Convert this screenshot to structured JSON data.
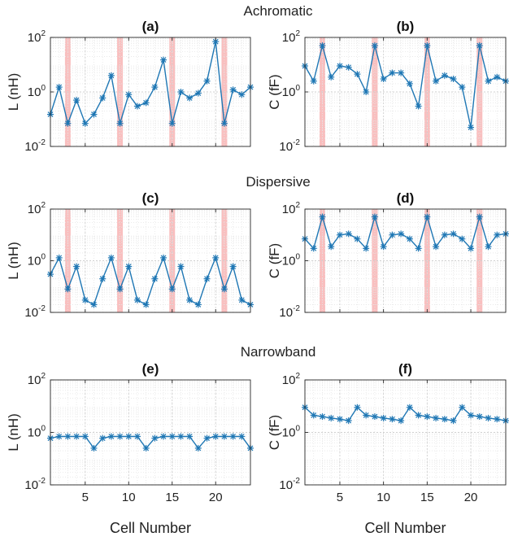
{
  "row_titles": [
    "Achromatic",
    "Dispersive",
    "Narrowband"
  ],
  "xlabel": "Cell Number",
  "xticks": [
    "5",
    "10",
    "15",
    "20"
  ],
  "ytick_labels": [
    {
      "base": "10",
      "exp": "2"
    },
    {
      "base": "10",
      "exp": "0"
    },
    {
      "base": "10",
      "exp": "-2"
    }
  ],
  "colors": {
    "line": "#1f77b4",
    "highlight": "#f8b4b4",
    "grid": "#d0d0d0"
  },
  "chart_data": [
    {
      "type": "line",
      "title": "(a)",
      "ylabel": "L (nH)",
      "yscale": "log",
      "ylim": [
        0.01,
        100
      ],
      "xlim": [
        1,
        24
      ],
      "highlight_x": [
        3,
        9,
        15,
        21
      ],
      "grid": true,
      "series": [
        {
          "values": [
            0.15,
            1.5,
            0.07,
            0.5,
            0.07,
            0.15,
            0.6,
            4,
            0.07,
            0.8,
            0.3,
            0.4,
            1.5,
            15,
            0.07,
            1,
            0.6,
            0.9,
            2.5,
            70,
            0.07,
            1.2,
            0.8,
            1.5
          ]
        }
      ]
    },
    {
      "type": "line",
      "title": "(b)",
      "ylabel": "C (fF)",
      "yscale": "log",
      "ylim": [
        0.01,
        100
      ],
      "xlim": [
        1,
        24
      ],
      "highlight_x": [
        3,
        9,
        15,
        21
      ],
      "grid": true,
      "series": [
        {
          "values": [
            9,
            2.5,
            50,
            3.5,
            9,
            8,
            4.5,
            1,
            50,
            3,
            5,
            5,
            2,
            0.3,
            50,
            2.5,
            4,
            3,
            1.5,
            0.05,
            50,
            2.5,
            3.5,
            2.5
          ]
        }
      ]
    },
    {
      "type": "line",
      "title": "(c)",
      "ylabel": "L (nH)",
      "yscale": "log",
      "ylim": [
        0.01,
        100
      ],
      "xlim": [
        1,
        24
      ],
      "highlight_x": [
        3,
        9,
        15,
        21
      ],
      "grid": true,
      "series": [
        {
          "values": [
            0.3,
            1.3,
            0.08,
            0.6,
            0.03,
            0.02,
            0.2,
            1.3,
            0.08,
            0.6,
            0.03,
            0.02,
            0.2,
            1.3,
            0.08,
            0.6,
            0.03,
            0.02,
            0.2,
            1.3,
            0.08,
            0.6,
            0.03,
            0.02
          ]
        }
      ]
    },
    {
      "type": "line",
      "title": "(d)",
      "ylabel": "C (fF)",
      "yscale": "log",
      "ylim": [
        0.01,
        100
      ],
      "xlim": [
        1,
        24
      ],
      "highlight_x": [
        3,
        9,
        15,
        21
      ],
      "grid": true,
      "series": [
        {
          "values": [
            7,
            3,
            50,
            3.5,
            10,
            11,
            7,
            3,
            50,
            3.5,
            10,
            11,
            7,
            3,
            50,
            3.5,
            10,
            11,
            7,
            3,
            50,
            3.5,
            10,
            11
          ]
        }
      ]
    },
    {
      "type": "line",
      "title": "(e)",
      "ylabel": "L (nH)",
      "yscale": "log",
      "ylim": [
        0.01,
        100
      ],
      "xlim": [
        1,
        24
      ],
      "highlight_x": [],
      "grid": true,
      "series": [
        {
          "values": [
            0.6,
            0.7,
            0.7,
            0.7,
            0.7,
            0.25,
            0.6,
            0.7,
            0.7,
            0.7,
            0.7,
            0.25,
            0.6,
            0.7,
            0.7,
            0.7,
            0.7,
            0.25,
            0.6,
            0.7,
            0.7,
            0.7,
            0.7,
            0.25
          ]
        }
      ]
    },
    {
      "type": "line",
      "title": "(f)",
      "ylabel": "C (fF)",
      "yscale": "log",
      "ylim": [
        0.01,
        100
      ],
      "xlim": [
        1,
        24
      ],
      "highlight_x": [],
      "grid": true,
      "series": [
        {
          "values": [
            9,
            4.5,
            4,
            3.5,
            3.2,
            2.8,
            9,
            4.5,
            4,
            3.5,
            3.2,
            2.8,
            9,
            4.5,
            4,
            3.5,
            3.2,
            2.8,
            9,
            4.5,
            4,
            3.5,
            3.2,
            2.8
          ]
        }
      ]
    }
  ]
}
